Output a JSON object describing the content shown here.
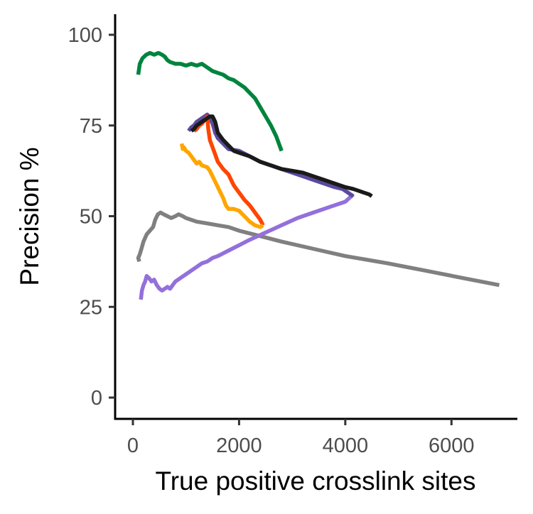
{
  "chart_data": {
    "type": "line",
    "title": "",
    "xlabel": "True positive crosslink sites",
    "ylabel": "Precision %",
    "xlim": [
      -300,
      7300
    ],
    "ylim": [
      -5,
      105
    ],
    "x_ticks": [
      0,
      2000,
      4000,
      6000
    ],
    "x_tick_labels": [
      "0",
      "2000",
      "4000",
      "6000"
    ],
    "y_ticks": [
      0,
      25,
      50,
      75,
      100
    ],
    "y_tick_labels": [
      "0",
      "25",
      "50",
      "75",
      "100"
    ],
    "grid": false,
    "legend": "none",
    "series": [
      {
        "color": "#808080",
        "points": [
          [
            120,
            37.5
          ],
          [
            100,
            38.5
          ],
          [
            130,
            39.5
          ],
          [
            160,
            41
          ],
          [
            200,
            43
          ],
          [
            260,
            45
          ],
          [
            320,
            46
          ],
          [
            380,
            47
          ],
          [
            420,
            49
          ],
          [
            470,
            50.5
          ],
          [
            520,
            51
          ],
          [
            580,
            50.5
          ],
          [
            650,
            50
          ],
          [
            720,
            49.5
          ],
          [
            800,
            50
          ],
          [
            860,
            50.5
          ],
          [
            940,
            50
          ],
          [
            1000,
            49.5
          ],
          [
            1100,
            49
          ],
          [
            1200,
            48.5
          ],
          [
            1400,
            48
          ],
          [
            1600,
            47.5
          ],
          [
            1800,
            47
          ],
          [
            2000,
            46
          ],
          [
            2400,
            44.5
          ],
          [
            2800,
            43
          ],
          [
            3400,
            41
          ],
          [
            4000,
            39
          ],
          [
            4800,
            37
          ],
          [
            5500,
            35
          ],
          [
            6200,
            33
          ],
          [
            6900,
            31
          ]
        ]
      },
      {
        "color": "#9370DB",
        "points": [
          [
            150,
            27
          ],
          [
            170,
            29.5
          ],
          [
            200,
            31
          ],
          [
            230,
            32
          ],
          [
            260,
            33.5
          ],
          [
            300,
            33
          ],
          [
            350,
            32
          ],
          [
            400,
            32.5
          ],
          [
            450,
            31
          ],
          [
            500,
            30
          ],
          [
            550,
            29.5
          ],
          [
            600,
            30
          ],
          [
            650,
            30.5
          ],
          [
            700,
            30
          ],
          [
            750,
            31
          ],
          [
            800,
            32
          ],
          [
            900,
            33
          ],
          [
            1000,
            34
          ],
          [
            1100,
            35
          ],
          [
            1200,
            36
          ],
          [
            1300,
            37
          ],
          [
            1400,
            37.5
          ],
          [
            1500,
            38.5
          ],
          [
            1600,
            39
          ],
          [
            1800,
            40.5
          ],
          [
            2000,
            42
          ],
          [
            2200,
            43.5
          ],
          [
            2500,
            45.5
          ],
          [
            2800,
            47.5
          ],
          [
            3100,
            49.5
          ],
          [
            3400,
            51
          ],
          [
            3700,
            52.5
          ],
          [
            4000,
            54
          ],
          [
            4150,
            56
          ]
        ]
      },
      {
        "color": "#00843D",
        "points": [
          [
            100,
            89
          ],
          [
            130,
            92
          ],
          [
            180,
            93.5
          ],
          [
            250,
            94.5
          ],
          [
            320,
            95
          ],
          [
            400,
            94.5
          ],
          [
            480,
            95
          ],
          [
            550,
            94.5
          ],
          [
            600,
            94
          ],
          [
            650,
            93
          ],
          [
            700,
            92.5
          ],
          [
            800,
            92
          ],
          [
            900,
            92
          ],
          [
            1000,
            91.5
          ],
          [
            1100,
            92
          ],
          [
            1200,
            91.5
          ],
          [
            1300,
            92
          ],
          [
            1400,
            91
          ],
          [
            1500,
            90
          ],
          [
            1600,
            89.5
          ],
          [
            1700,
            89
          ],
          [
            1800,
            88
          ],
          [
            1900,
            87.5
          ],
          [
            2000,
            86.5
          ],
          [
            2100,
            85.5
          ],
          [
            2200,
            84
          ],
          [
            2300,
            82.5
          ],
          [
            2400,
            80
          ],
          [
            2500,
            77.5
          ],
          [
            2600,
            75
          ],
          [
            2700,
            72
          ],
          [
            2800,
            68
          ]
        ]
      },
      {
        "color": "#5B4A9E",
        "points": [
          [
            1050,
            73.5
          ],
          [
            1100,
            74.5
          ],
          [
            1150,
            75
          ],
          [
            1200,
            76
          ],
          [
            1250,
            76.5
          ],
          [
            1300,
            77
          ],
          [
            1350,
            77.5
          ],
          [
            1400,
            78
          ],
          [
            1450,
            77
          ],
          [
            1500,
            75.5
          ],
          [
            1550,
            73
          ],
          [
            1600,
            71.5
          ],
          [
            1700,
            70
          ],
          [
            1800,
            68.5
          ],
          [
            2000,
            68
          ],
          [
            2200,
            66.5
          ],
          [
            2400,
            65
          ],
          [
            2600,
            64
          ],
          [
            2800,
            63
          ],
          [
            3000,
            62
          ],
          [
            3200,
            61
          ],
          [
            3400,
            60
          ],
          [
            3600,
            59
          ],
          [
            3800,
            58
          ],
          [
            3950,
            57.5
          ],
          [
            4050,
            56.5
          ],
          [
            4150,
            55.5
          ]
        ]
      },
      {
        "color": "#FF4500",
        "points": [
          [
            1150,
            73.5
          ],
          [
            1200,
            74
          ],
          [
            1250,
            75
          ],
          [
            1300,
            75.5
          ],
          [
            1350,
            76.5
          ],
          [
            1400,
            77.5
          ],
          [
            1420,
            74
          ],
          [
            1450,
            71
          ],
          [
            1500,
            69
          ],
          [
            1550,
            67
          ],
          [
            1600,
            65
          ],
          [
            1650,
            64
          ],
          [
            1700,
            63
          ],
          [
            1800,
            61.5
          ],
          [
            1850,
            60
          ],
          [
            1900,
            58.5
          ],
          [
            1950,
            57.5
          ],
          [
            2000,
            56.5
          ],
          [
            2050,
            55.5
          ],
          [
            2100,
            54.5
          ],
          [
            2200,
            53
          ],
          [
            2300,
            51
          ],
          [
            2400,
            49
          ],
          [
            2450,
            47.5
          ]
        ]
      },
      {
        "color": "#FFA500",
        "points": [
          [
            920,
            70
          ],
          [
            940,
            68.5
          ],
          [
            960,
            69
          ],
          [
            980,
            68.5
          ],
          [
            1000,
            68
          ],
          [
            1050,
            67.5
          ],
          [
            1100,
            66.5
          ],
          [
            1150,
            65.5
          ],
          [
            1200,
            64.5
          ],
          [
            1250,
            65
          ],
          [
            1300,
            64
          ],
          [
            1400,
            63.5
          ],
          [
            1450,
            62.5
          ],
          [
            1500,
            61
          ],
          [
            1600,
            58
          ],
          [
            1650,
            56.5
          ],
          [
            1700,
            55
          ],
          [
            1750,
            53
          ],
          [
            1800,
            52
          ],
          [
            1900,
            52
          ],
          [
            2000,
            51.5
          ],
          [
            2100,
            50
          ],
          [
            2200,
            48.5
          ],
          [
            2300,
            47.5
          ],
          [
            2400,
            47
          ],
          [
            2450,
            47.5
          ]
        ]
      },
      {
        "color": "#1A1A1A",
        "points": [
          [
            1100,
            73.5
          ],
          [
            1150,
            74
          ],
          [
            1200,
            75
          ],
          [
            1250,
            75.5
          ],
          [
            1300,
            76
          ],
          [
            1350,
            76.5
          ],
          [
            1400,
            77
          ],
          [
            1450,
            77.5
          ],
          [
            1500,
            77.5
          ],
          [
            1550,
            76
          ],
          [
            1600,
            73
          ],
          [
            1700,
            71
          ],
          [
            1800,
            69.5
          ],
          [
            1900,
            68
          ],
          [
            2000,
            67.5
          ],
          [
            2200,
            66.5
          ],
          [
            2400,
            65
          ],
          [
            2600,
            64
          ],
          [
            2800,
            63
          ],
          [
            3000,
            62.5
          ],
          [
            3200,
            62
          ],
          [
            3400,
            61
          ],
          [
            3600,
            60
          ],
          [
            3800,
            59
          ],
          [
            4000,
            58
          ],
          [
            4150,
            57.5
          ],
          [
            4250,
            57
          ],
          [
            4350,
            56.5
          ],
          [
            4450,
            56
          ],
          [
            4500,
            55.5
          ]
        ]
      }
    ]
  }
}
